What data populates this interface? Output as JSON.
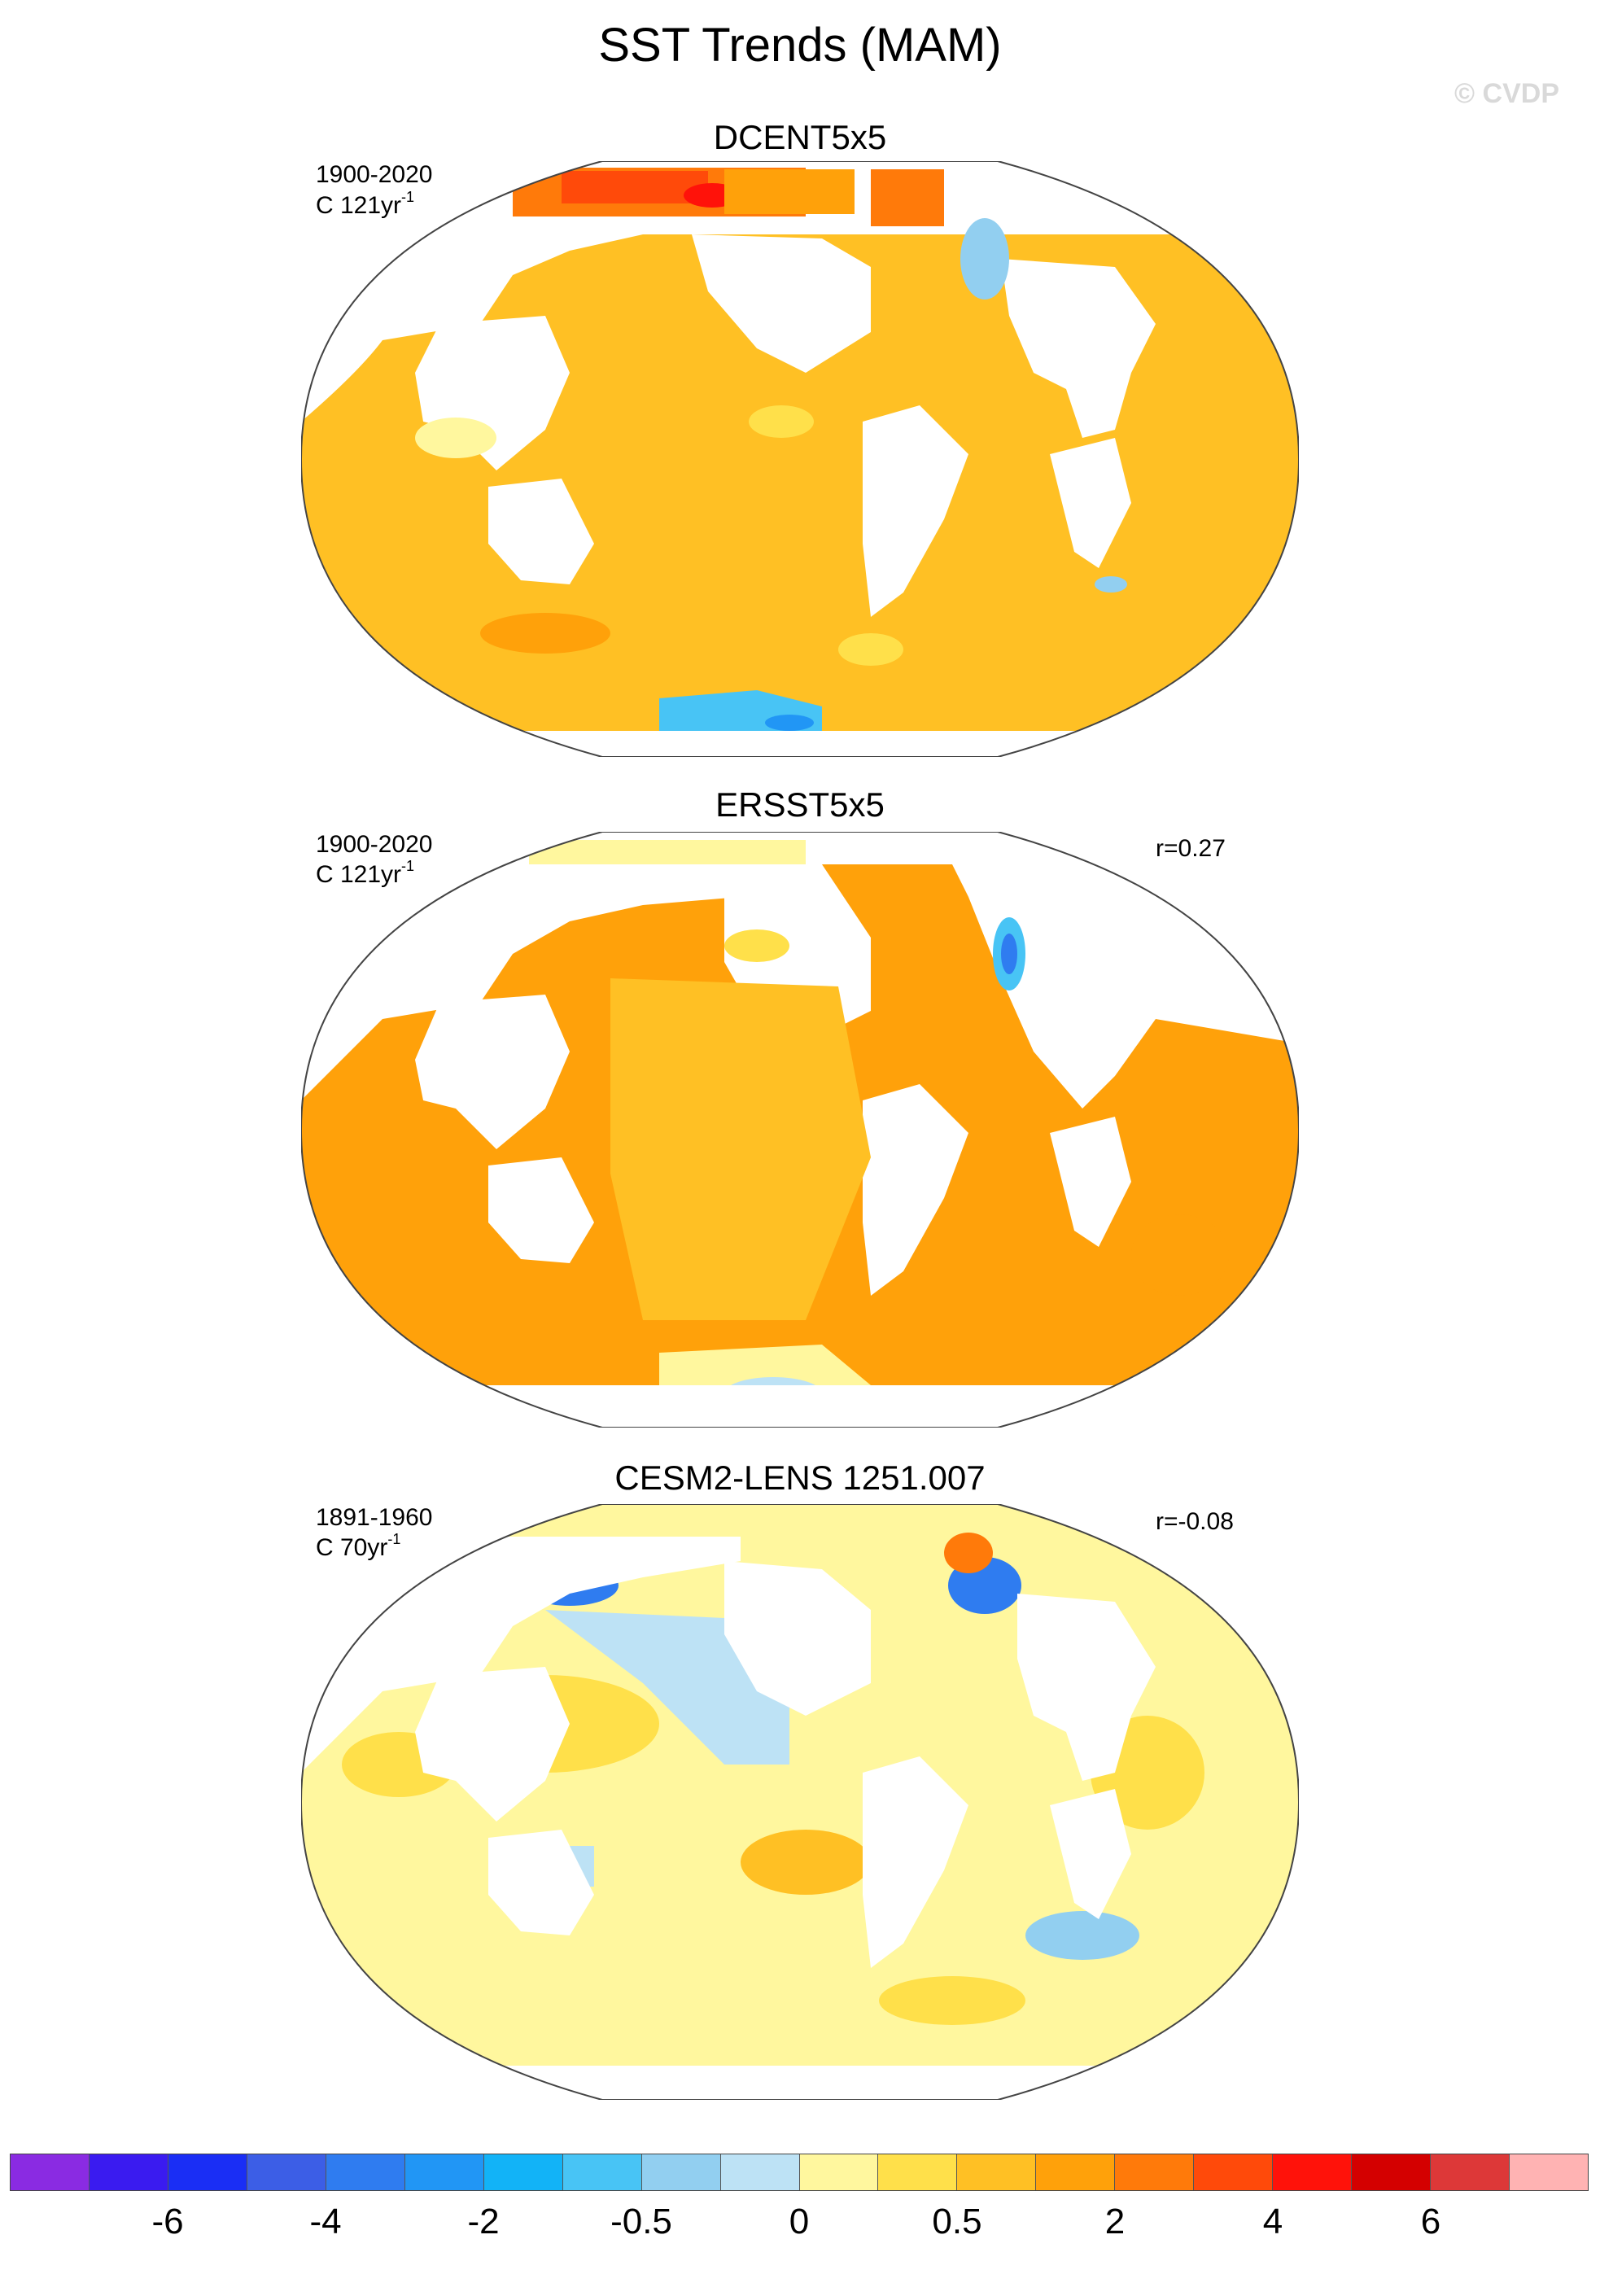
{
  "title": "SST Trends (MAM)",
  "credit": "© CVDP",
  "panels": [
    {
      "name": "DCENT5x5",
      "years": "1900-2020",
      "units_prefix": "C 121yr",
      "units_exp": "-1",
      "r": "",
      "style": "warm"
    },
    {
      "name": "ERSST5x5",
      "years": "1900-2020",
      "units_prefix": "C 121yr",
      "units_exp": "-1",
      "r": "r=0.27",
      "style": "warm"
    },
    {
      "name": "CESM2-LENS 1251.007",
      "years": "1891-1960",
      "units_prefix": "C 70yr",
      "units_exp": "-1",
      "r": "r=-0.08",
      "style": "mixed"
    }
  ],
  "colorbar": {
    "colors": [
      "#8a2be2",
      "#3a1bf0",
      "#1a2ef5",
      "#3c5ee6",
      "#2f7cf0",
      "#2196f5",
      "#12b3f7",
      "#48c4f5",
      "#92cff0",
      "#bde2f5",
      "#fff79e",
      "#ffe04a",
      "#ffc024",
      "#ffa10a",
      "#ff7a0a",
      "#ff4a0a",
      "#ff120a",
      "#d40000",
      "#dd3838",
      "#ffb3b3"
    ],
    "labels": [
      {
        "text": "-6",
        "boundary": 2
      },
      {
        "text": "-4",
        "boundary": 4
      },
      {
        "text": "-2",
        "boundary": 6
      },
      {
        "text": "-0.5",
        "boundary": 8
      },
      {
        "text": "0",
        "boundary": 10
      },
      {
        "text": "0.5",
        "boundary": 12
      },
      {
        "text": "2",
        "boundary": 14
      },
      {
        "text": "4",
        "boundary": 16
      },
      {
        "text": "6",
        "boundary": 18
      }
    ]
  }
}
